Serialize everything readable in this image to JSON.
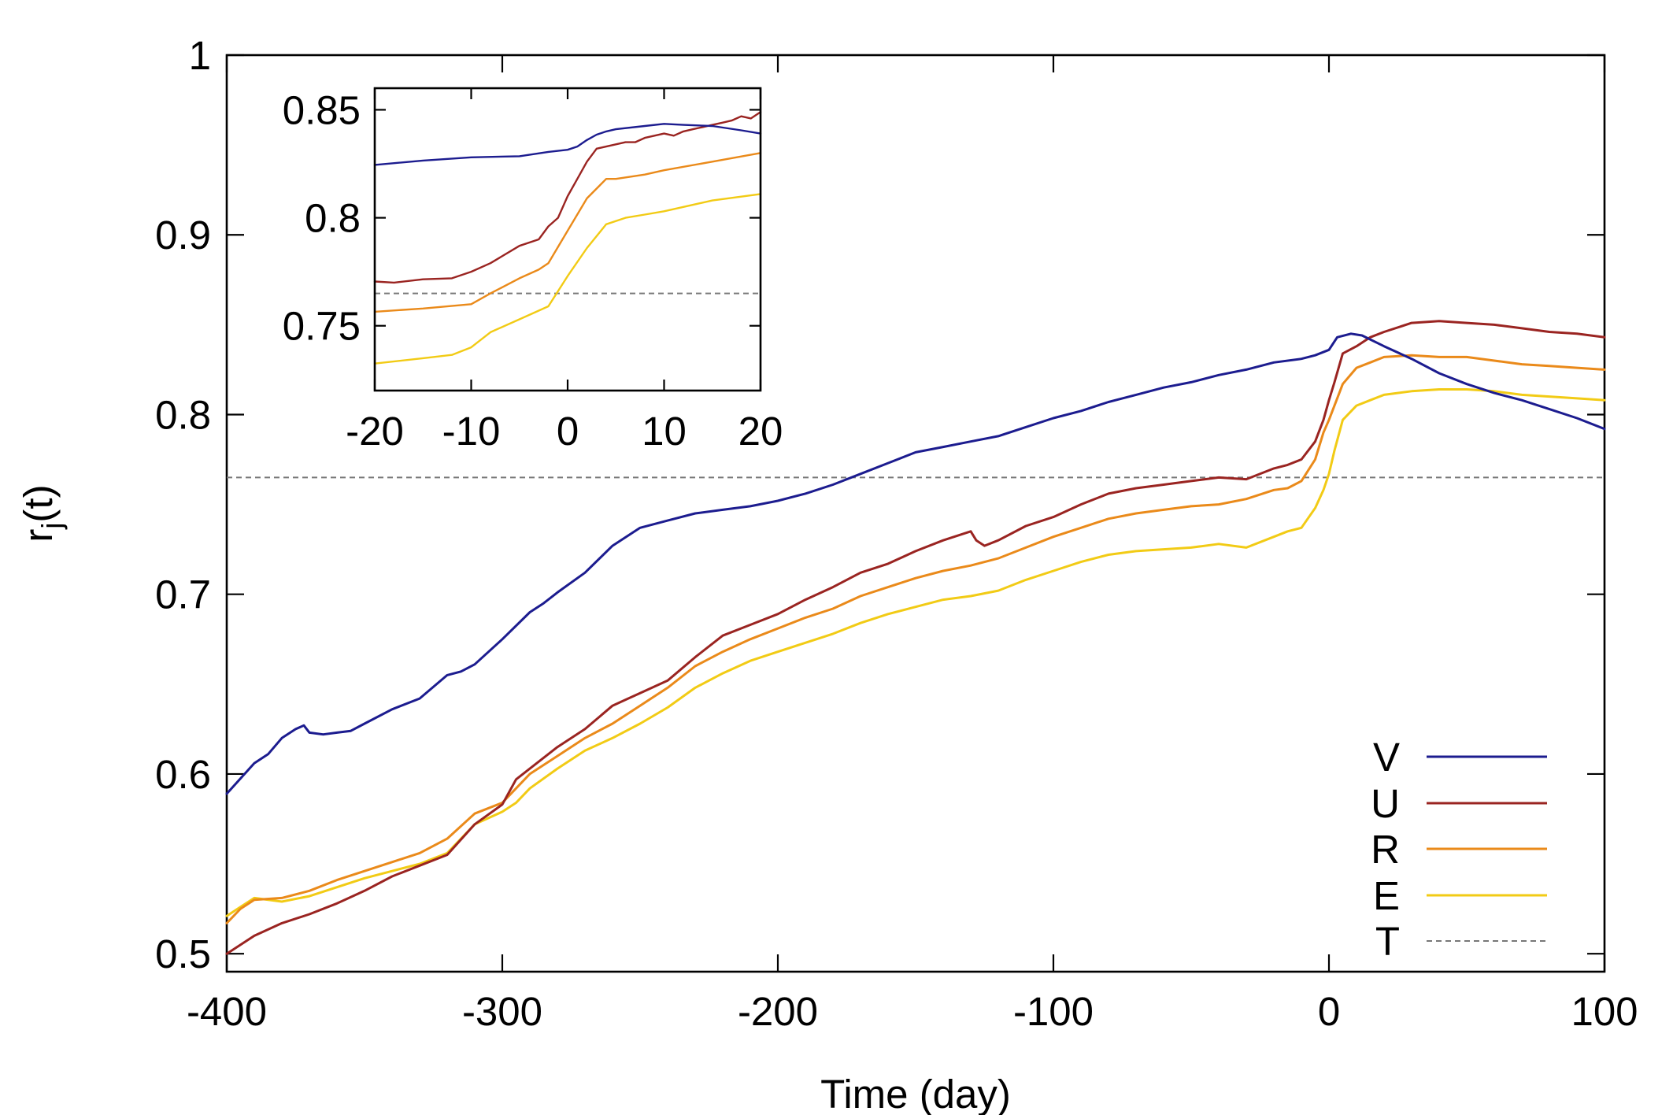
{
  "chart_data": [
    {
      "type": "line",
      "title": "",
      "xlabel": "Time (day)",
      "ylabel_main": "r",
      "ylabel_sub": "j",
      "ylabel_tail": "(t)",
      "xlim": [
        -400,
        100
      ],
      "ylim": [
        0.49,
        1.0
      ],
      "xticks": [
        -400,
        -300,
        -200,
        -100,
        0,
        100
      ],
      "xtick_labels": [
        "-400",
        "-300",
        "-200",
        "-100",
        "0",
        "100"
      ],
      "yticks": [
        0.5,
        0.6,
        0.7,
        0.8,
        0.9,
        1.0
      ],
      "ytick_labels": [
        "0.5",
        "0.6",
        "0.7",
        "0.8",
        "0.9",
        "1"
      ],
      "legend_position": "bottom-right",
      "series": [
        {
          "name": "V",
          "color": "#1c1c8f",
          "dashed": false,
          "x": [
            -400,
            -390,
            -385,
            -380,
            -375,
            -372,
            -370,
            -365,
            -360,
            -355,
            -350,
            -340,
            -330,
            -320,
            -315,
            -310,
            -300,
            -290,
            -285,
            -280,
            -270,
            -260,
            -250,
            -240,
            -230,
            -220,
            -210,
            -200,
            -190,
            -180,
            -170,
            -160,
            -150,
            -140,
            -130,
            -120,
            -110,
            -100,
            -90,
            -80,
            -70,
            -60,
            -50,
            -40,
            -30,
            -20,
            -10,
            -5,
            0,
            3,
            8,
            12,
            20,
            30,
            40,
            50,
            60,
            70,
            80,
            90,
            100
          ],
          "values": [
            0.589,
            0.606,
            0.611,
            0.62,
            0.625,
            0.627,
            0.623,
            0.622,
            0.623,
            0.624,
            0.628,
            0.636,
            0.642,
            0.655,
            0.657,
            0.661,
            0.675,
            0.69,
            0.695,
            0.701,
            0.712,
            0.727,
            0.737,
            0.741,
            0.745,
            0.747,
            0.749,
            0.752,
            0.756,
            0.761,
            0.767,
            0.773,
            0.779,
            0.782,
            0.785,
            0.788,
            0.793,
            0.798,
            0.802,
            0.807,
            0.811,
            0.815,
            0.818,
            0.822,
            0.825,
            0.829,
            0.831,
            0.833,
            0.836,
            0.843,
            0.845,
            0.844,
            0.838,
            0.831,
            0.823,
            0.817,
            0.812,
            0.808,
            0.803,
            0.798,
            0.792
          ]
        },
        {
          "name": "U",
          "color": "#9a2421",
          "dashed": false,
          "x": [
            -400,
            -390,
            -380,
            -370,
            -360,
            -350,
            -340,
            -330,
            -320,
            -310,
            -300,
            -295,
            -290,
            -280,
            -270,
            -260,
            -250,
            -240,
            -230,
            -220,
            -210,
            -200,
            -190,
            -180,
            -170,
            -160,
            -150,
            -140,
            -130,
            -128,
            -125,
            -120,
            -110,
            -100,
            -90,
            -80,
            -70,
            -60,
            -50,
            -40,
            -30,
            -20,
            -15,
            -10,
            -5,
            -2,
            0,
            2,
            5,
            10,
            15,
            20,
            30,
            40,
            50,
            60,
            70,
            80,
            90,
            100
          ],
          "values": [
            0.5,
            0.51,
            0.517,
            0.522,
            0.528,
            0.535,
            0.543,
            0.549,
            0.555,
            0.572,
            0.583,
            0.597,
            0.603,
            0.615,
            0.625,
            0.638,
            0.645,
            0.652,
            0.665,
            0.677,
            0.683,
            0.689,
            0.697,
            0.704,
            0.712,
            0.717,
            0.724,
            0.73,
            0.735,
            0.73,
            0.727,
            0.73,
            0.738,
            0.743,
            0.75,
            0.756,
            0.759,
            0.761,
            0.763,
            0.765,
            0.764,
            0.77,
            0.772,
            0.775,
            0.785,
            0.797,
            0.808,
            0.818,
            0.834,
            0.838,
            0.843,
            0.846,
            0.851,
            0.852,
            0.851,
            0.85,
            0.848,
            0.846,
            0.845,
            0.843
          ]
        },
        {
          "name": "R",
          "color": "#ea8a1a",
          "dashed": false,
          "x": [
            -400,
            -395,
            -390,
            -380,
            -370,
            -360,
            -350,
            -340,
            -330,
            -320,
            -310,
            -300,
            -295,
            -290,
            -280,
            -270,
            -260,
            -250,
            -240,
            -230,
            -220,
            -210,
            -200,
            -190,
            -180,
            -170,
            -160,
            -150,
            -140,
            -130,
            -120,
            -110,
            -100,
            -90,
            -80,
            -70,
            -60,
            -50,
            -40,
            -30,
            -20,
            -15,
            -10,
            -5,
            -2,
            0,
            2,
            5,
            10,
            15,
            20,
            30,
            40,
            50,
            60,
            70,
            80,
            90,
            100
          ],
          "values": [
            0.517,
            0.525,
            0.53,
            0.531,
            0.535,
            0.541,
            0.546,
            0.551,
            0.556,
            0.564,
            0.578,
            0.584,
            0.592,
            0.6,
            0.61,
            0.62,
            0.628,
            0.638,
            0.648,
            0.66,
            0.668,
            0.675,
            0.681,
            0.687,
            0.692,
            0.699,
            0.704,
            0.709,
            0.713,
            0.716,
            0.72,
            0.726,
            0.732,
            0.737,
            0.742,
            0.745,
            0.747,
            0.749,
            0.75,
            0.753,
            0.758,
            0.759,
            0.763,
            0.775,
            0.79,
            0.797,
            0.805,
            0.817,
            0.826,
            0.829,
            0.832,
            0.833,
            0.832,
            0.832,
            0.83,
            0.828,
            0.827,
            0.826,
            0.825
          ]
        },
        {
          "name": "E",
          "color": "#f2cb15",
          "dashed": false,
          "x": [
            -400,
            -395,
            -390,
            -380,
            -370,
            -360,
            -350,
            -340,
            -330,
            -320,
            -310,
            -300,
            -295,
            -290,
            -280,
            -270,
            -260,
            -250,
            -240,
            -230,
            -220,
            -210,
            -200,
            -190,
            -180,
            -170,
            -160,
            -150,
            -140,
            -130,
            -120,
            -110,
            -100,
            -90,
            -80,
            -70,
            -60,
            -50,
            -40,
            -30,
            -20,
            -15,
            -10,
            -5,
            -2,
            0,
            2,
            5,
            10,
            15,
            20,
            30,
            40,
            50,
            60,
            70,
            80,
            90,
            100
          ],
          "values": [
            0.521,
            0.526,
            0.531,
            0.529,
            0.532,
            0.537,
            0.542,
            0.546,
            0.55,
            0.556,
            0.572,
            0.579,
            0.584,
            0.592,
            0.603,
            0.613,
            0.62,
            0.628,
            0.637,
            0.648,
            0.656,
            0.663,
            0.668,
            0.673,
            0.678,
            0.684,
            0.689,
            0.693,
            0.697,
            0.699,
            0.702,
            0.708,
            0.713,
            0.718,
            0.722,
            0.724,
            0.725,
            0.726,
            0.728,
            0.726,
            0.732,
            0.735,
            0.737,
            0.748,
            0.758,
            0.767,
            0.78,
            0.797,
            0.805,
            0.808,
            0.811,
            0.813,
            0.814,
            0.814,
            0.813,
            0.811,
            0.81,
            0.809,
            0.808
          ]
        },
        {
          "name": "T",
          "color": "#777777",
          "dashed": true,
          "x": [
            -400,
            100
          ],
          "values": [
            0.765,
            0.765
          ]
        }
      ]
    },
    {
      "type": "line",
      "title": "",
      "xlabel": "",
      "ylabel": "",
      "xlim": [
        -20,
        20
      ],
      "ylim": [
        0.72,
        0.86
      ],
      "xticks": [
        -20,
        -10,
        0,
        10,
        20
      ],
      "xtick_labels": [
        "-20",
        "-10",
        "0",
        "10",
        "20"
      ],
      "yticks": [
        0.75,
        0.8,
        0.85
      ],
      "ytick_labels": [
        "0.75",
        "0.8",
        "0.85"
      ],
      "series": [
        {
          "name": "V",
          "color": "#1c1c8f",
          "dashed": false,
          "x": [
            -20,
            -15,
            -10,
            -5,
            -2,
            0,
            1,
            2,
            3,
            4,
            5,
            8,
            10,
            12,
            15,
            18,
            20
          ],
          "values": [
            0.8245,
            0.8265,
            0.828,
            0.8285,
            0.8305,
            0.8315,
            0.833,
            0.836,
            0.8385,
            0.84,
            0.841,
            0.8425,
            0.8435,
            0.843,
            0.8425,
            0.8405,
            0.839
          ]
        },
        {
          "name": "U",
          "color": "#9a2421",
          "dashed": false,
          "x": [
            -20,
            -18,
            -15,
            -12,
            -10,
            -8,
            -5,
            -3,
            -2,
            -1,
            0,
            1,
            2,
            3,
            4,
            5,
            6,
            7,
            8,
            9,
            10,
            11,
            12,
            13,
            14,
            15,
            16,
            17,
            18,
            19,
            20
          ],
          "values": [
            0.7705,
            0.77,
            0.7715,
            0.772,
            0.775,
            0.779,
            0.787,
            0.79,
            0.796,
            0.8,
            0.81,
            0.818,
            0.826,
            0.832,
            0.833,
            0.834,
            0.835,
            0.835,
            0.837,
            0.838,
            0.839,
            0.838,
            0.84,
            0.841,
            0.842,
            0.843,
            0.844,
            0.845,
            0.847,
            0.846,
            0.849
          ]
        },
        {
          "name": "R",
          "color": "#ea8a1a",
          "dashed": false,
          "x": [
            -20,
            -15,
            -10,
            -8,
            -5,
            -3,
            -2,
            0,
            2,
            4,
            5,
            8,
            10,
            15,
            20
          ],
          "values": [
            0.7565,
            0.758,
            0.76,
            0.765,
            0.772,
            0.776,
            0.779,
            0.794,
            0.809,
            0.818,
            0.818,
            0.82,
            0.822,
            0.826,
            0.83
          ]
        },
        {
          "name": "E",
          "color": "#f2cb15",
          "dashed": false,
          "x": [
            -20,
            -15,
            -12,
            -10,
            -8,
            -5,
            -3,
            -2,
            0,
            2,
            4,
            6,
            8,
            10,
            15,
            20
          ],
          "values": [
            0.7325,
            0.735,
            0.7365,
            0.74,
            0.747,
            0.753,
            0.757,
            0.759,
            0.773,
            0.786,
            0.797,
            0.8,
            0.8015,
            0.803,
            0.808,
            0.811
          ]
        },
        {
          "name": "T",
          "color": "#777777",
          "dashed": true,
          "x": [
            -20,
            20
          ],
          "values": [
            0.765,
            0.765
          ]
        }
      ]
    }
  ]
}
